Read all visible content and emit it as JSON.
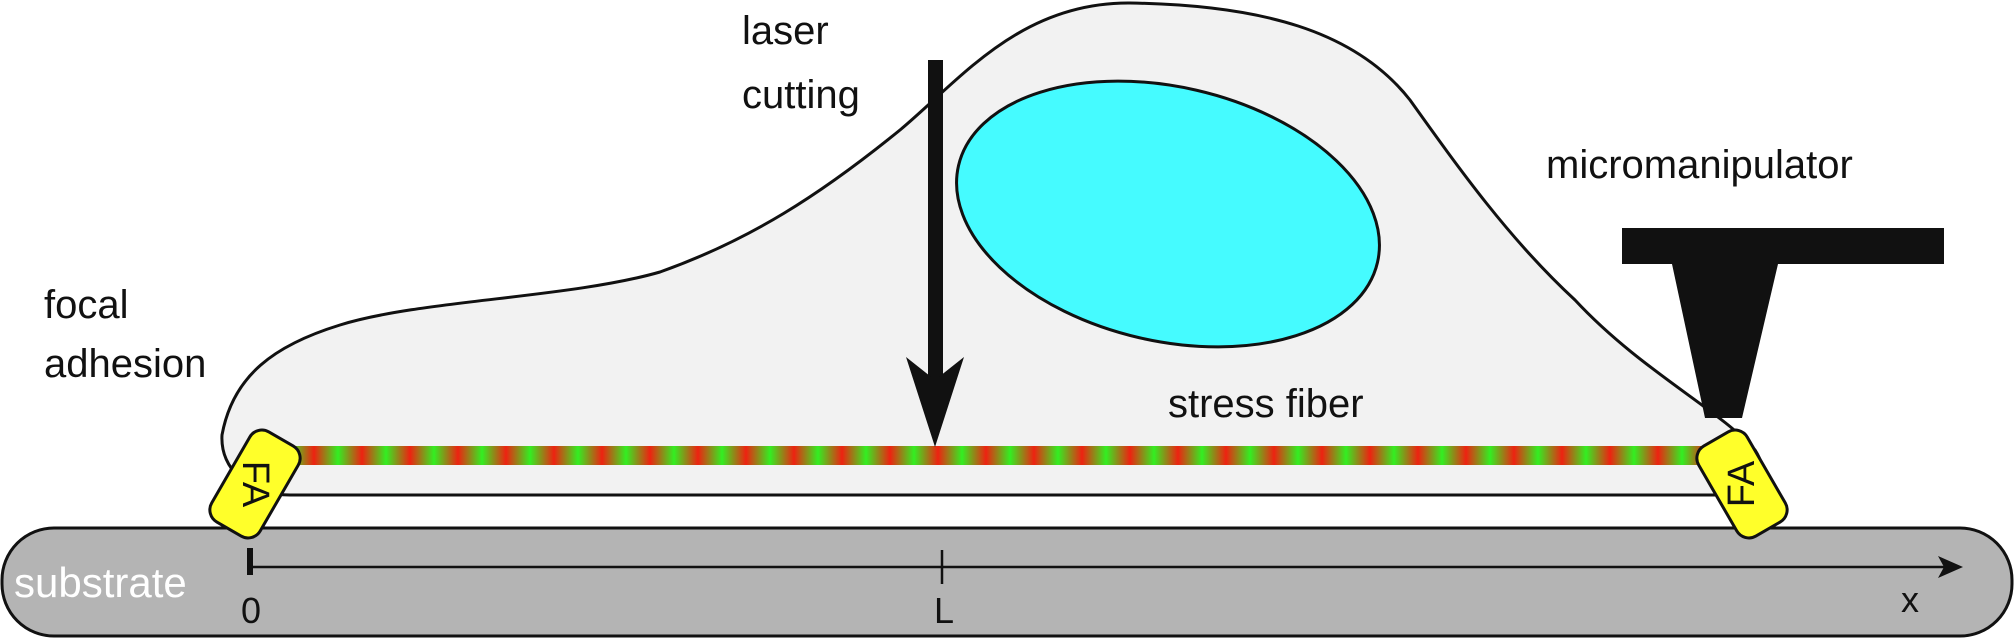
{
  "labels": {
    "laser_line1": "laser",
    "laser_line2": "cutting",
    "micromanipulator": "micromanipulator",
    "focal_line1": "focal",
    "focal_line2": "adhesion",
    "stress_fiber": "stress fiber",
    "substrate": "substrate",
    "fa_left": "FA",
    "fa_right": "FA",
    "axis_origin": "0",
    "axis_mid": "L",
    "axis_end": "x"
  },
  "colors": {
    "cell_fill": "#f2f2f2",
    "nucleus_fill": "#45fbff",
    "substrate_fill": "#b4b4b4",
    "fa_fill": "#ffff2a",
    "fiber_green": "#33ee22",
    "fiber_red": "#ee2211",
    "substrate_text": "#ffffff"
  },
  "icons": {
    "laser": "down-arrow-icon",
    "micromanipulator": "t-probe-icon"
  }
}
